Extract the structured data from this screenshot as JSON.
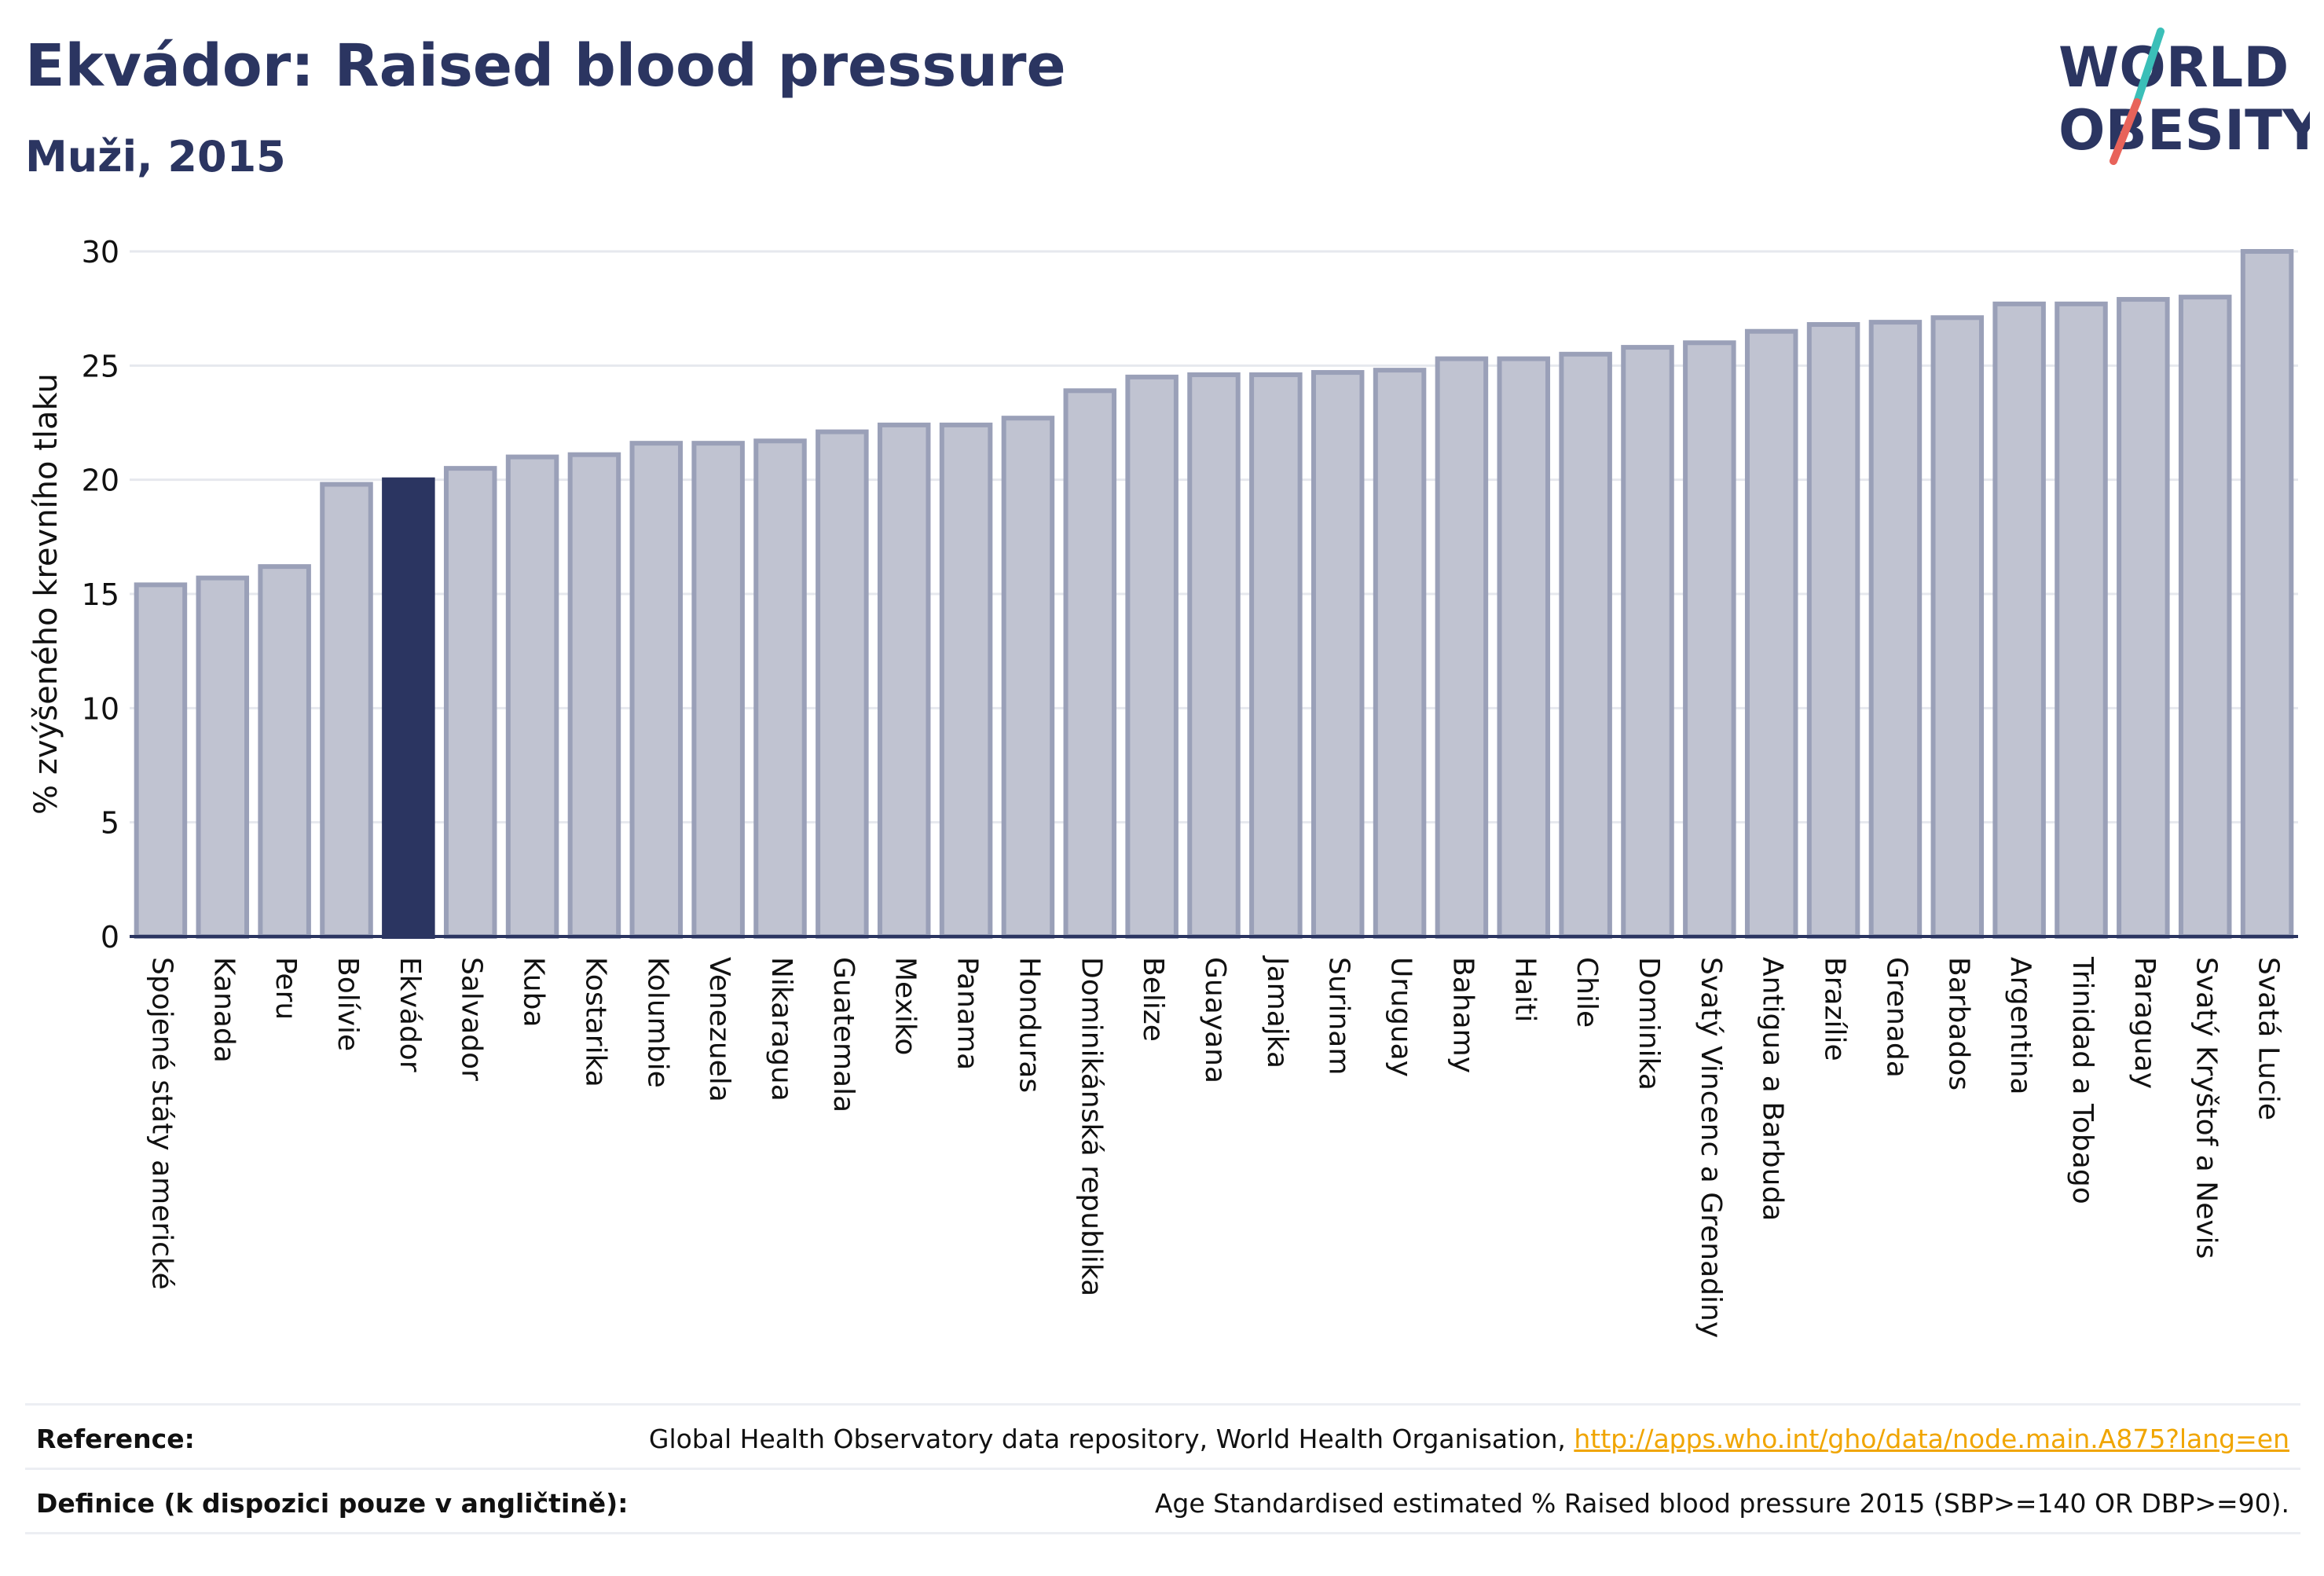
{
  "title": "Ekvádor: Raised blood pressure",
  "subtitle": "Muži, 2015",
  "logo": {
    "line1": "WORLD",
    "line2": "OBESITY",
    "accent_teal": "#3bbfb8",
    "accent_red": "#e8635a"
  },
  "colors": {
    "bar": "#c0c3d1",
    "bar_border": "#9aa0b8",
    "highlight": "#2b3561",
    "grid": "#e6e8ee",
    "axis": "#2b3561"
  },
  "chart_data": {
    "type": "bar",
    "ylabel": "% zvýšeného krevního tlaku",
    "ylim": [
      0,
      30
    ],
    "yticks": [
      0,
      5,
      10,
      15,
      20,
      25,
      30
    ],
    "highlight": "Ekvádor",
    "categories": [
      "Spojené státy americké",
      "Kanada",
      "Peru",
      "Bolívie",
      "Ekvádor",
      "Salvador",
      "Kuba",
      "Kostarika",
      "Kolumbie",
      "Venezuela",
      "Nikaragua",
      "Guatemala",
      "Mexiko",
      "Panama",
      "Honduras",
      "Dominikánská republika",
      "Belize",
      "Guayana",
      "Jamajka",
      "Surinam",
      "Uruguay",
      "Bahamy",
      "Haiti",
      "Chile",
      "Dominika",
      "Svatý Vincenc a Grenadiny",
      "Antigua a Barbuda",
      "Brazílie",
      "Grenada",
      "Barbados",
      "Argentina",
      "Trinidad a Tobago",
      "Paraguay",
      "Svatý Kryštof a Nevis",
      "Svatá Lucie"
    ],
    "values": [
      15.4,
      15.7,
      16.2,
      19.8,
      20.0,
      20.5,
      21.0,
      21.1,
      21.6,
      21.6,
      21.7,
      22.1,
      22.4,
      22.4,
      22.7,
      23.9,
      24.5,
      24.6,
      24.6,
      24.7,
      24.8,
      25.3,
      25.3,
      25.5,
      25.8,
      26.0,
      26.5,
      26.8,
      26.9,
      27.1,
      27.7,
      27.7,
      27.9,
      28.0,
      30.0
    ]
  },
  "footer": {
    "reference_label": "Reference:",
    "reference_text": "Global Health Observatory data repository, World Health Organisation, ",
    "reference_link": "http://apps.who.int/gho/data/node.main.A875?lang=en",
    "definition_label": "Definice (k dispozici pouze v angličtině):",
    "definition_text": "Age Standardised estimated % Raised blood pressure 2015 (SBP>=140 OR DBP>=90)."
  }
}
